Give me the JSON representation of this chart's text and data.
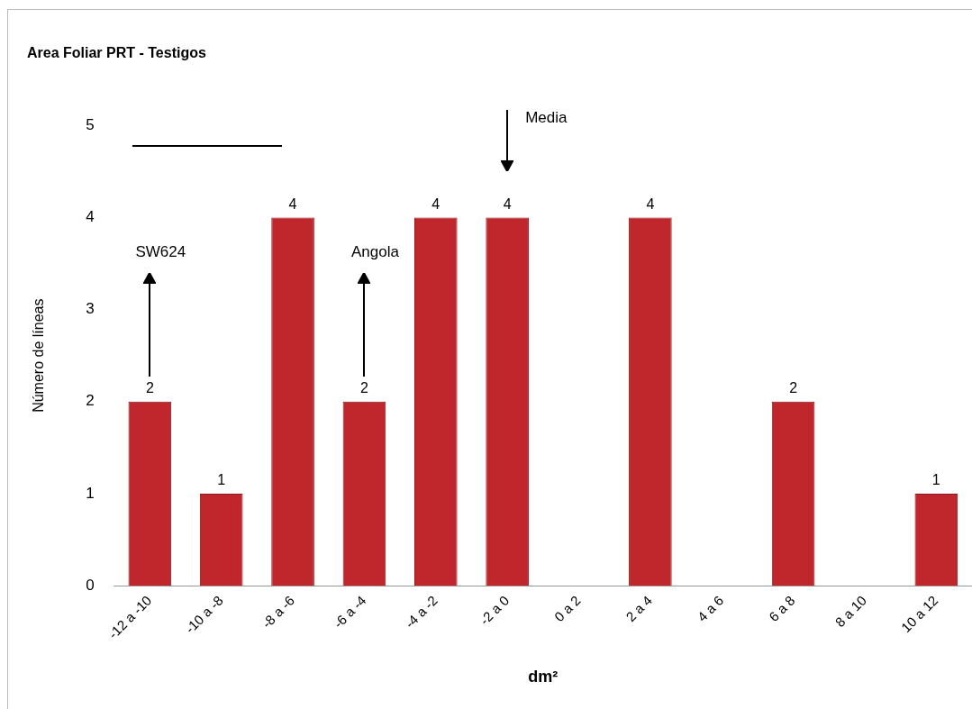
{
  "chart_data": {
    "type": "bar",
    "title": "Area Foliar PRT - Testigos",
    "xlabel": "dm²",
    "ylabel": "Número de líneas",
    "categories": [
      "-12 a -10",
      "-10 a -8",
      "-8 a -6",
      "-6 a -4",
      "-4 a -2",
      "-2 a 0",
      "0 a 2",
      "2 a 4",
      "4 a 6",
      "6 a 8",
      "8 a 10",
      "10 a 12"
    ],
    "values": [
      2,
      1,
      4,
      2,
      4,
      4,
      0,
      4,
      0,
      2,
      0,
      1
    ],
    "value_labels": [
      "2",
      "1",
      "4",
      "2",
      "4",
      "4",
      null,
      "4",
      null,
      "2",
      null,
      "1"
    ],
    "color": "#c0272d",
    "ylim": [
      0,
      5
    ],
    "yticks": [
      0,
      1,
      2,
      3,
      4,
      5
    ],
    "grid": false,
    "legend": false,
    "annotations": [
      "SW624",
      "Angola",
      "Media"
    ]
  }
}
